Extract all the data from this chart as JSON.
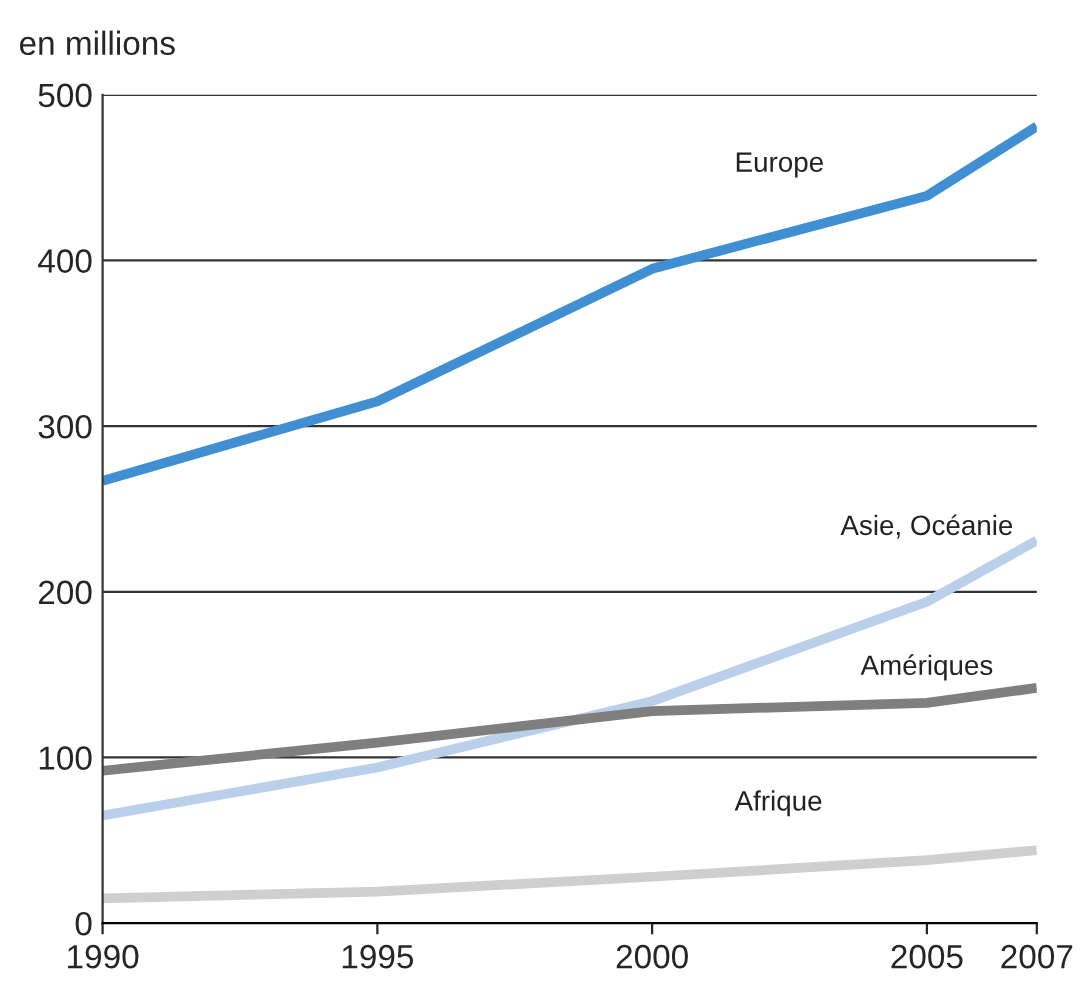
{
  "chart_data": {
    "type": "line",
    "ylabel": "en millions",
    "x": [
      1990,
      1995,
      2000,
      2005,
      2007
    ],
    "series": [
      {
        "name": "Europe",
        "color": "#3f8fd2",
        "values": [
          267,
          315,
          395,
          439,
          481
        ]
      },
      {
        "name": "Asie, Océanie",
        "color": "#b9cfea",
        "values": [
          65,
          94,
          134,
          194,
          231
        ]
      },
      {
        "name": "Amériques",
        "color": "#7f7f7f",
        "values": [
          92,
          109,
          128,
          133,
          142
        ]
      },
      {
        "name": "Afrique",
        "color": "#cfcfcf",
        "values": [
          15,
          19,
          28,
          38,
          44
        ]
      }
    ],
    "xlim": [
      1990,
      2007
    ],
    "xticks": [
      1990,
      1995,
      2000,
      2005,
      2007
    ],
    "ylim": [
      0,
      500
    ],
    "yticks": [
      0,
      100,
      200,
      300,
      400,
      500
    ],
    "grid": "y",
    "legend": false,
    "marker": "none",
    "line_style": "solid"
  }
}
